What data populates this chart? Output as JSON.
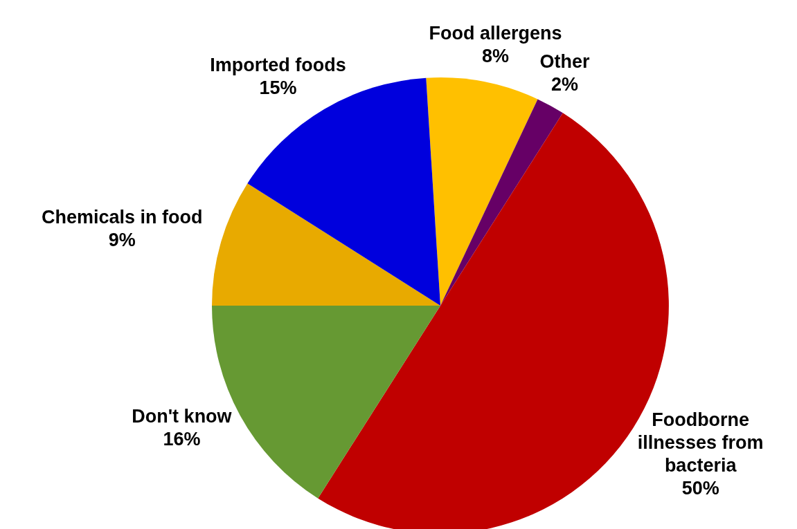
{
  "chart_data": {
    "type": "pie",
    "categories": [
      "Food allergens",
      "Other",
      "Foodborne illnesses from bacteria",
      "Don't know",
      "Chemicals in food",
      "Imported foods"
    ],
    "values": [
      8,
      2,
      50,
      16,
      9,
      15
    ],
    "colors": [
      "#ffc000",
      "#660066",
      "#c00000",
      "#669933",
      "#e8aa00",
      "#0000dd"
    ],
    "value_labels": [
      "8%",
      "2%",
      "50%",
      "16%",
      "9%",
      "15%"
    ]
  }
}
